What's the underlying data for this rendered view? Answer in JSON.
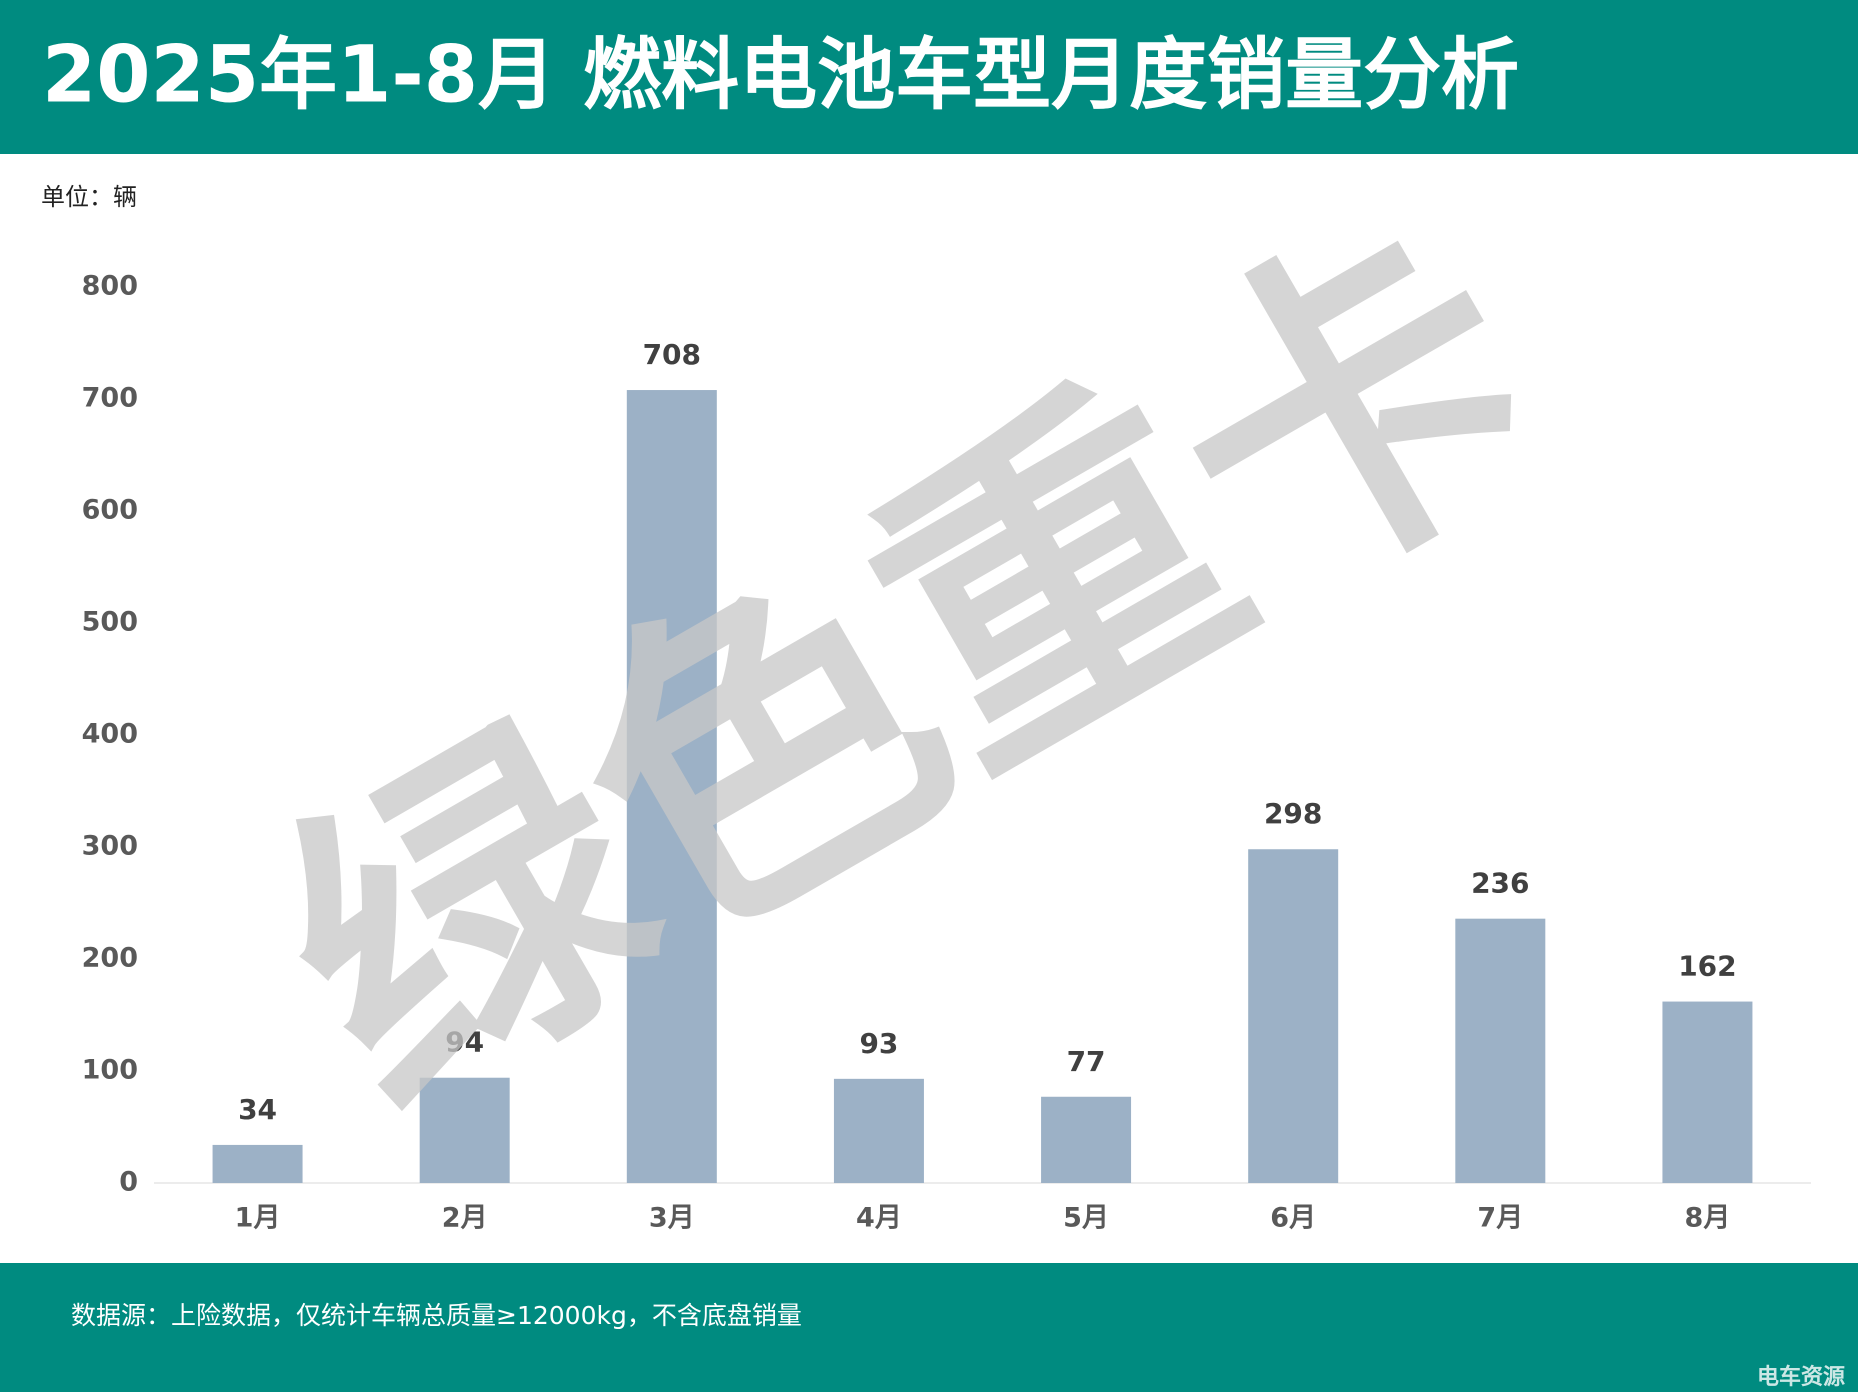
{
  "chart_data": {
    "type": "bar",
    "title": "2025年1-8月 燃料电池车型月度销量分析",
    "unit_label": "单位：辆",
    "categories": [
      "1月",
      "2月",
      "3月",
      "4月",
      "5月",
      "6月",
      "7月",
      "8月"
    ],
    "values": [
      34,
      94,
      708,
      93,
      77,
      298,
      236,
      162
    ],
    "color": "#9cb1c6",
    "ylim": [
      0,
      800
    ],
    "yticks": [
      0,
      100,
      200,
      300,
      400,
      500,
      600,
      700,
      800
    ],
    "grid": false,
    "source_note": "数据源：上险数据，仅统计车辆总质量≥12000kg，不含底盘销量",
    "watermark": "绿色重卡",
    "logo": "电车资源"
  }
}
